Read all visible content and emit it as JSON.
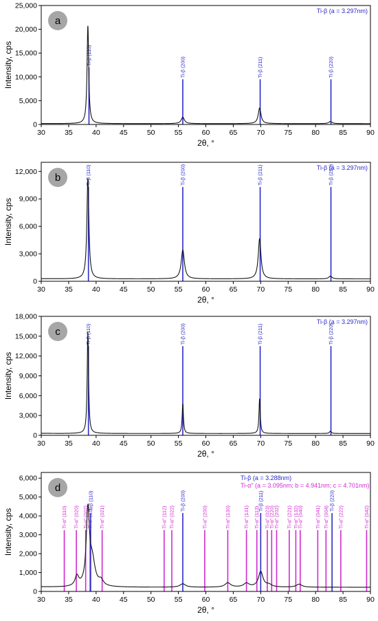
{
  "chart_data": [
    {
      "type": "line",
      "panel_label": "a",
      "xlabel": "2θ, °",
      "ylabel": "Intensity, cps",
      "xlim": [
        30,
        90
      ],
      "ylim": [
        0,
        25000
      ],
      "x_ticks": [
        30,
        35,
        40,
        45,
        50,
        55,
        60,
        65,
        70,
        75,
        80,
        85,
        90
      ],
      "y_ticks": [
        0,
        5000,
        10000,
        15000,
        20000,
        25000
      ],
      "legend": [
        {
          "text": "Ti-β (a = 3.297nm)",
          "color": "#2a2ac8"
        }
      ],
      "baseline": 180,
      "peaks": [
        {
          "x": 38.5,
          "height": 20600,
          "width": 0.18
        },
        {
          "x": 55.8,
          "height": 1350,
          "width": 0.35
        },
        {
          "x": 69.8,
          "height": 3300,
          "width": 0.3
        },
        {
          "x": 82.7,
          "height": 450,
          "width": 0.35
        }
      ],
      "reference_lines": [
        {
          "x": 38.7,
          "label": "Ti-β (110)",
          "color": "#2a2ac8",
          "top": 12000
        },
        {
          "x": 55.8,
          "label": "Ti-β (200)",
          "color": "#2a2ac8",
          "top": 9500
        },
        {
          "x": 69.9,
          "label": "Ti-β (211)",
          "color": "#2a2ac8",
          "top": 9500
        },
        {
          "x": 82.8,
          "label": "Ti-β (220)",
          "color": "#2a2ac8",
          "top": 9500
        }
      ]
    },
    {
      "type": "line",
      "panel_label": "b",
      "xlabel": "2θ, °",
      "ylabel": "Intensity, cps",
      "xlim": [
        30,
        90
      ],
      "ylim": [
        0,
        13000
      ],
      "x_ticks": [
        30,
        35,
        40,
        45,
        50,
        55,
        60,
        65,
        70,
        75,
        80,
        85,
        90
      ],
      "y_ticks": [
        0,
        3000,
        6000,
        9000,
        12000
      ],
      "legend": [
        {
          "text": "Ti-β (a = 3.297nm)",
          "color": "#2a2ac8"
        }
      ],
      "baseline": 260,
      "peaks": [
        {
          "x": 38.5,
          "height": 11000,
          "width": 0.22
        },
        {
          "x": 55.8,
          "height": 3150,
          "width": 0.35
        },
        {
          "x": 69.8,
          "height": 4400,
          "width": 0.3
        },
        {
          "x": 82.7,
          "height": 300,
          "width": 0.35
        }
      ],
      "reference_lines": [
        {
          "x": 38.6,
          "label": "Ti-β (110)",
          "color": "#2a2ac8",
          "top": 10300
        },
        {
          "x": 55.8,
          "label": "Ti-β (200)",
          "color": "#2a2ac8",
          "top": 10300
        },
        {
          "x": 69.9,
          "label": "Ti-β (211)",
          "color": "#2a2ac8",
          "top": 10300
        },
        {
          "x": 82.8,
          "label": "Ti-β (220)",
          "color": "#2a2ac8",
          "top": 10300
        }
      ]
    },
    {
      "type": "line",
      "panel_label": "c",
      "xlabel": "2θ, °",
      "ylabel": "Intensity, cps",
      "xlim": [
        30,
        90
      ],
      "ylim": [
        0,
        18000
      ],
      "x_ticks": [
        30,
        35,
        40,
        45,
        50,
        55,
        60,
        65,
        70,
        75,
        80,
        85,
        90
      ],
      "y_ticks": [
        0,
        3000,
        6000,
        9000,
        12000,
        15000,
        18000
      ],
      "legend": [
        {
          "text": "Ti-β (a = 3.297nm)",
          "color": "#2a2ac8"
        }
      ],
      "baseline": 280,
      "peaks": [
        {
          "x": 38.5,
          "height": 15400,
          "width": 0.15
        },
        {
          "x": 55.8,
          "height": 4500,
          "width": 0.14
        },
        {
          "x": 69.8,
          "height": 5300,
          "width": 0.14
        },
        {
          "x": 82.7,
          "height": 350,
          "width": 0.2
        }
      ],
      "reference_lines": [
        {
          "x": 38.6,
          "label": "Ti-β (110)",
          "color": "#2a2ac8",
          "top": 13500
        },
        {
          "x": 55.8,
          "label": "Ti-β (200)",
          "color": "#2a2ac8",
          "top": 13500
        },
        {
          "x": 69.9,
          "label": "Ti-β (211)",
          "color": "#2a2ac8",
          "top": 13500
        },
        {
          "x": 82.8,
          "label": "Ti-β (220)",
          "color": "#2a2ac8",
          "top": 13500
        }
      ]
    },
    {
      "type": "line",
      "panel_label": "d",
      "xlabel": "2θ, °",
      "ylabel": "Intensity, cps",
      "xlim": [
        30,
        90
      ],
      "ylim": [
        0,
        6300
      ],
      "x_ticks": [
        30,
        35,
        40,
        45,
        50,
        55,
        60,
        65,
        70,
        75,
        80,
        85,
        90
      ],
      "y_ticks": [
        0,
        1000,
        2000,
        3000,
        4000,
        5000,
        6000
      ],
      "legend": [
        {
          "text": "Ti-β (a = 3.288nm)",
          "color": "#2a2ac8"
        },
        {
          "text": "Ti-α\" (a = 3.095nm; b = 4.941nm; c = 4.701nm)",
          "color": "#d02ad0"
        }
      ],
      "baseline": 220,
      "peaks": [
        {
          "x": 36.5,
          "height": 520,
          "width": 0.4
        },
        {
          "x": 38.5,
          "height": 3900,
          "width": 0.35
        },
        {
          "x": 39.3,
          "height": 1300,
          "width": 0.6
        },
        {
          "x": 40.9,
          "height": 280,
          "width": 0.5
        },
        {
          "x": 55.8,
          "height": 180,
          "width": 0.6
        },
        {
          "x": 64.0,
          "height": 230,
          "width": 0.6
        },
        {
          "x": 67.4,
          "height": 200,
          "width": 0.6
        },
        {
          "x": 70.0,
          "height": 820,
          "width": 0.5
        },
        {
          "x": 71.5,
          "height": 120,
          "width": 0.6
        },
        {
          "x": 77.0,
          "height": 160,
          "width": 0.6
        }
      ],
      "reference_lines": [
        {
          "x": 34.2,
          "label": "Ti-α\" (110)",
          "color": "#d02ad0",
          "top": 3250
        },
        {
          "x": 36.4,
          "label": "Ti-α\" (020)",
          "color": "#d02ad0",
          "top": 3250
        },
        {
          "x": 38.1,
          "label": "Ti-α\" (002)",
          "color": "#d02ad0",
          "top": 3250
        },
        {
          "x": 38.9,
          "label": "Ti-α\" (111)",
          "color": "#d02ad0",
          "top": 3250
        },
        {
          "x": 39.0,
          "label": "Ti-β (110)",
          "color": "#2a2ac8",
          "top": 4150
        },
        {
          "x": 41.1,
          "label": "Ti-α\" (021)",
          "color": "#d02ad0",
          "top": 3250
        },
        {
          "x": 52.4,
          "label": "Ti-α\" (112)",
          "color": "#d02ad0",
          "top": 3250
        },
        {
          "x": 53.8,
          "label": "Ti-α\" (022)",
          "color": "#d02ad0",
          "top": 3250
        },
        {
          "x": 55.8,
          "label": "Ti-β (200)",
          "color": "#2a2ac8",
          "top": 4150
        },
        {
          "x": 59.8,
          "label": "Ti-α\" (200)",
          "color": "#d02ad0",
          "top": 3250
        },
        {
          "x": 64.0,
          "label": "Ti-α\" (130)",
          "color": "#d02ad0",
          "top": 3250
        },
        {
          "x": 67.4,
          "label": "Ti-α\" (131)",
          "color": "#d02ad0",
          "top": 3250
        },
        {
          "x": 69.3,
          "label": "Ti-α\" (113)",
          "color": "#d02ad0",
          "top": 3250
        },
        {
          "x": 70.0,
          "label": "Ti-β (211)",
          "color": "#2a2ac8",
          "top": 4150
        },
        {
          "x": 71.2,
          "label": "Ti-α\" (023)",
          "color": "#d02ad0",
          "top": 3250
        },
        {
          "x": 72.0,
          "label": "Ti-α\" (220)",
          "color": "#d02ad0",
          "top": 3250
        },
        {
          "x": 72.9,
          "label": "Ti-α\" (202)",
          "color": "#d02ad0",
          "top": 3250
        },
        {
          "x": 75.2,
          "label": "Ti-α\" (221)",
          "color": "#d02ad0",
          "top": 3250
        },
        {
          "x": 76.4,
          "label": "Ti-α\" (132)",
          "color": "#d02ad0",
          "top": 3250
        },
        {
          "x": 77.2,
          "label": "Ti-α\" (040)",
          "color": "#d02ad0",
          "top": 3250
        },
        {
          "x": 80.4,
          "label": "Ti-α\" (041)",
          "color": "#d02ad0",
          "top": 3250
        },
        {
          "x": 81.9,
          "label": "Ti-α\" (004)",
          "color": "#d02ad0",
          "top": 3250
        },
        {
          "x": 83.0,
          "label": "Ti-β (220)",
          "color": "#2a2ac8",
          "top": 4150
        },
        {
          "x": 84.6,
          "label": "Ti-α\" (222)",
          "color": "#d02ad0",
          "top": 3250
        },
        {
          "x": 89.3,
          "label": "Ti-α\" (042)",
          "color": "#d02ad0",
          "top": 3250
        }
      ]
    }
  ]
}
